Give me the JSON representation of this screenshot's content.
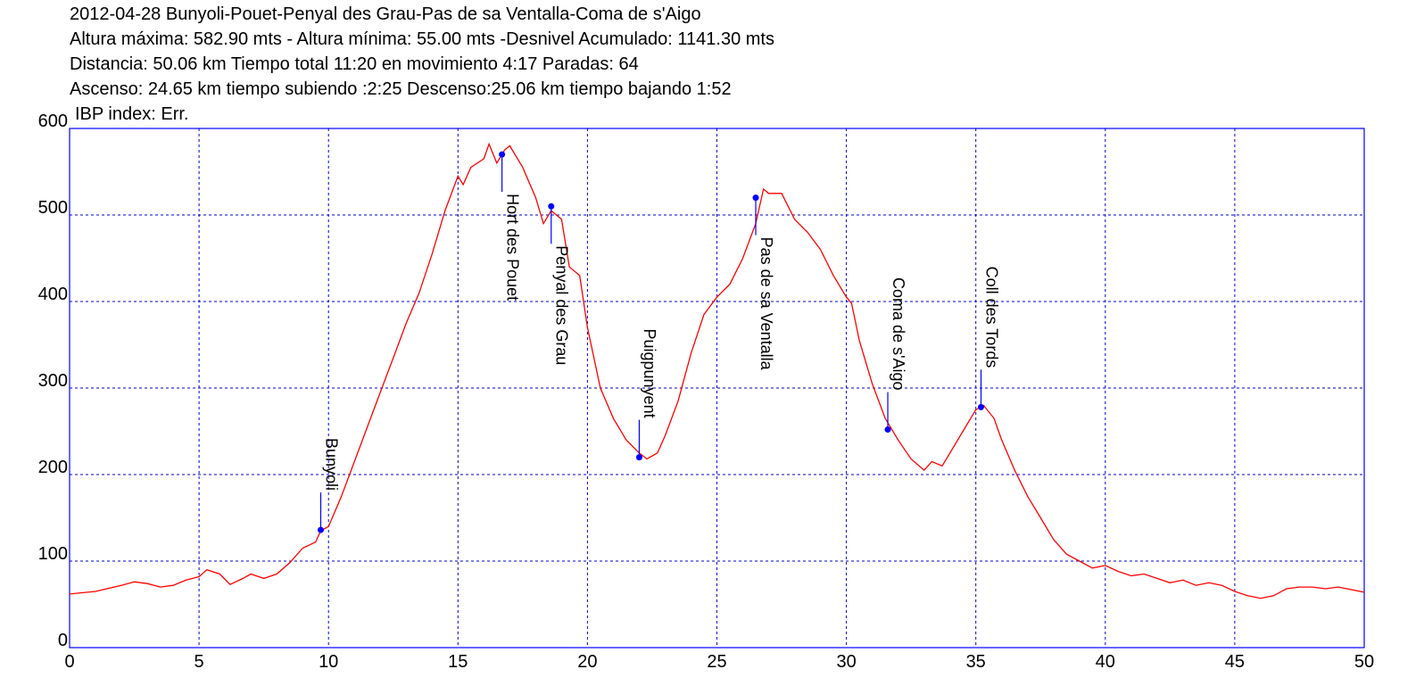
{
  "chart_data": {
    "type": "line",
    "title": "2012-04-28 Bunyoli-Pouet-Penyal des Grau-Pas de sa Ventalla-Coma de s'Aigo",
    "subtitle": [
      "Altura máxima: 582.90 mts - Altura mínima: 55.00 mts -Desnivel Acumulado: 1141.30 mts",
      "Distancia: 50.06 km  Tiempo total 11:20  en movimiento 4:17 Paradas: 64",
      "Ascenso: 24.65 km  tiempo subiendo :2:25  Descenso:25.06 km tiempo bajando 1:52",
      "IBP index: Err."
    ],
    "x": [
      0,
      1,
      2,
      2.5,
      3,
      3.5,
      4,
      4.5,
      5,
      5.3,
      5.8,
      6.2,
      6.7,
      7,
      7.5,
      8,
      8.5,
      9,
      9.5,
      9.7,
      10,
      10.5,
      11,
      11.5,
      12,
      12.5,
      13,
      13.5,
      14,
      14.5,
      15,
      15.2,
      15.5,
      16,
      16.2,
      16.5,
      16.8,
      17,
      17.5,
      18,
      18.3,
      18.6,
      19,
      19.3,
      19.7,
      20,
      20.5,
      21,
      21.5,
      22,
      22.3,
      22.7,
      23,
      23.5,
      24,
      24.5,
      25,
      25.5,
      26,
      26.5,
      26.8,
      27,
      27.5,
      28,
      28.5,
      29,
      29.5,
      30,
      30.2,
      30.5,
      31,
      31.5,
      32,
      32.5,
      33,
      33.3,
      33.7,
      34,
      34.5,
      35,
      35.3,
      35.7,
      36,
      36.5,
      37,
      37.5,
      38,
      38.5,
      39,
      39.5,
      40,
      40.5,
      41,
      41.5,
      42,
      42.5,
      43,
      43.5,
      44,
      44.5,
      45,
      45.5,
      46,
      46.5,
      47,
      47.5,
      48,
      48.5,
      49,
      50
    ],
    "series": [
      {
        "color": "#ff0000",
        "values": [
          62,
          65,
          72,
          76,
          74,
          70,
          72,
          78,
          82,
          90,
          85,
          73,
          80,
          85,
          80,
          85,
          98,
          115,
          122,
          135,
          140,
          175,
          215,
          255,
          295,
          335,
          375,
          410,
          455,
          505,
          545,
          535,
          555,
          565,
          582,
          560,
          575,
          580,
          555,
          520,
          490,
          505,
          495,
          440,
          430,
          370,
          300,
          265,
          240,
          225,
          218,
          225,
          245,
          285,
          340,
          385,
          405,
          420,
          450,
          490,
          530,
          525,
          525,
          495,
          480,
          460,
          430,
          405,
          398,
          355,
          305,
          265,
          240,
          218,
          205,
          215,
          210,
          225,
          250,
          275,
          280,
          265,
          240,
          205,
          175,
          150,
          125,
          108,
          100,
          92,
          95,
          88,
          83,
          85,
          80,
          75,
          78,
          72,
          75,
          72,
          65,
          60,
          57,
          60,
          68,
          70,
          70,
          68,
          70,
          64
        ]
      }
    ],
    "annotations": [
      {
        "label": "Bunyoli",
        "x": 9.7,
        "y": 136
      },
      {
        "label": "Hort des Pouet",
        "x": 16.7,
        "y": 570
      },
      {
        "label": "Penyal des Grau",
        "x": 18.6,
        "y": 510
      },
      {
        "label": "Puigpunyent",
        "x": 22.0,
        "y": 220
      },
      {
        "label": "Pas de sa Ventalla",
        "x": 26.5,
        "y": 520
      },
      {
        "label": "Coma de s'Aigo",
        "x": 31.6,
        "y": 252
      },
      {
        "label": "Coll des Tords",
        "x": 35.2,
        "y": 278
      }
    ],
    "annotation_color": "#0000ff",
    "xlim": [
      0,
      50
    ],
    "xticks": [
      0,
      5,
      10,
      15,
      20,
      25,
      30,
      35,
      40,
      45,
      50
    ],
    "ylim": [
      0,
      600
    ],
    "yticks": [
      0,
      100,
      200,
      300,
      400,
      500,
      600
    ],
    "grid": true,
    "grid_color": "#0000cc"
  }
}
